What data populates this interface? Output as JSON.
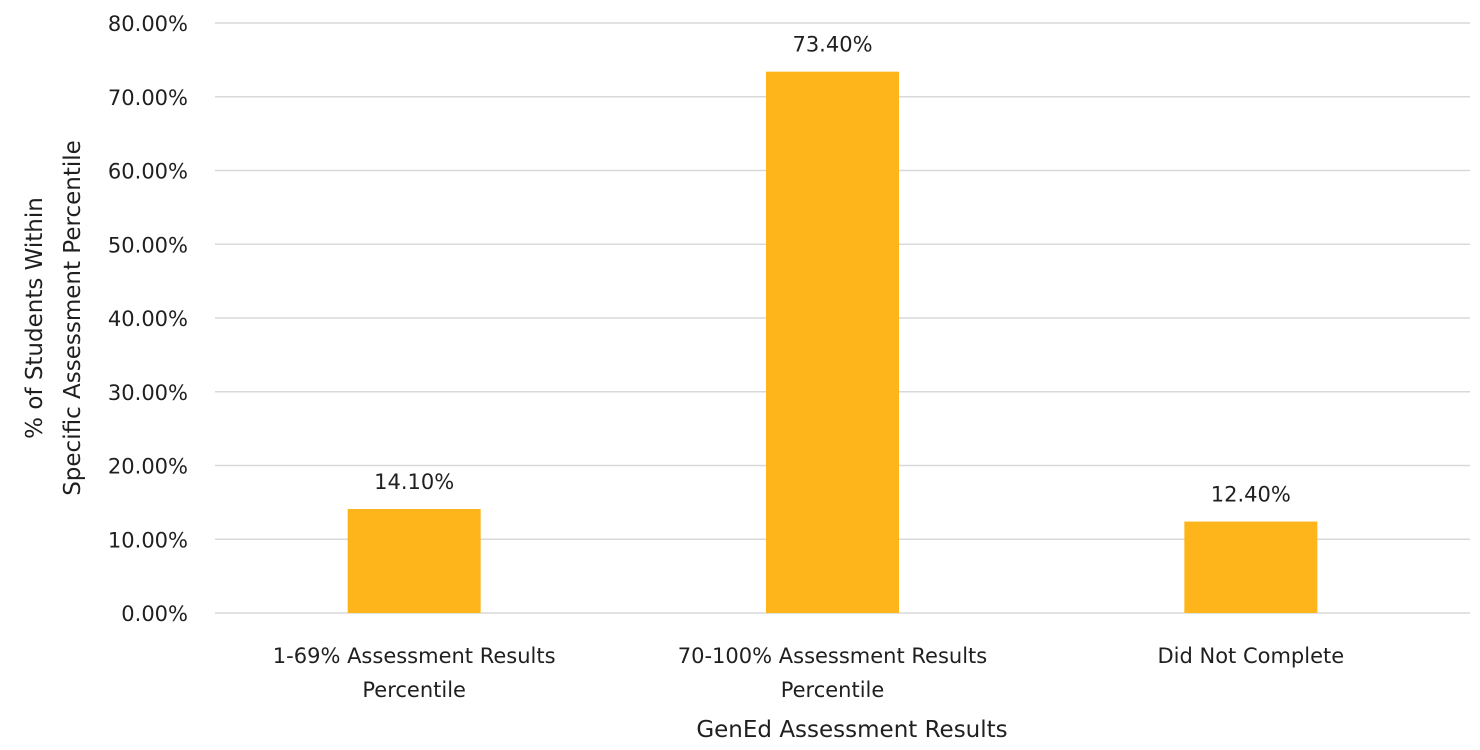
{
  "chart_data": {
    "type": "bar",
    "categories": [
      [
        "1-69% Assessment Results",
        "Percentile"
      ],
      [
        "70-100% Assessment Results",
        "Percentile"
      ],
      [
        "Did Not Complete"
      ]
    ],
    "values": [
      14.1,
      73.4,
      12.4
    ],
    "data_labels": [
      "14.10%",
      "73.40%",
      "12.40%"
    ],
    "title": "",
    "xlabel": "GenEd Assessment Results",
    "ylabel": [
      "% of Students Within",
      "Specific Assessment Percentile"
    ],
    "ylim": [
      0,
      80
    ],
    "yticks": [
      0,
      10,
      20,
      30,
      40,
      50,
      60,
      70,
      80
    ],
    "ytick_labels": [
      "0.00%",
      "10.00%",
      "20.00%",
      "30.00%",
      "40.00%",
      "50.00%",
      "60.00%",
      "70.00%",
      "80.00%"
    ],
    "grid": true,
    "legend": "none",
    "colors": {
      "bar": "#FDB51B",
      "grid": "#d9d9d9"
    }
  }
}
